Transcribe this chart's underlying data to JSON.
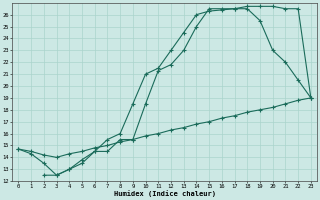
{
  "xlabel": "Humidex (Indice chaleur)",
  "bg_color": "#cce8e4",
  "grid_color": "#aad4cc",
  "line_color": "#1a6b5a",
  "xlim_min": -0.5,
  "xlim_max": 23.5,
  "ylim_min": 12,
  "ylim_max": 27,
  "yticks": [
    12,
    13,
    14,
    15,
    16,
    17,
    18,
    19,
    20,
    21,
    22,
    23,
    24,
    25,
    26
  ],
  "xticks": [
    0,
    1,
    2,
    3,
    4,
    5,
    6,
    7,
    8,
    9,
    10,
    11,
    12,
    13,
    14,
    15,
    16,
    17,
    18,
    19,
    20,
    21,
    22,
    23
  ],
  "line1_x": [
    0,
    1,
    2,
    3,
    4,
    5,
    6,
    7,
    8,
    9,
    10,
    11,
    12,
    13,
    14,
    15,
    16,
    17,
    18,
    19,
    20,
    21,
    22,
    23
  ],
  "line1_y": [
    14.7,
    14.5,
    14.2,
    14.0,
    14.3,
    14.5,
    14.8,
    15.0,
    15.3,
    15.5,
    15.8,
    16.0,
    16.3,
    16.5,
    16.8,
    17.0,
    17.3,
    17.5,
    17.8,
    18.0,
    18.2,
    18.5,
    18.8,
    19.0
  ],
  "line2_x": [
    0,
    1,
    2,
    3,
    4,
    5,
    6,
    7,
    8,
    9,
    10,
    11,
    12,
    13,
    14,
    15,
    16,
    17,
    18,
    19,
    20,
    21,
    22,
    23
  ],
  "line2_y": [
    14.7,
    14.3,
    13.5,
    12.5,
    13.0,
    13.5,
    14.5,
    15.5,
    16.0,
    18.5,
    21.0,
    21.5,
    23.0,
    24.5,
    26.0,
    26.3,
    26.4,
    26.5,
    26.5,
    25.5,
    23.0,
    22.0,
    20.5,
    19.0
  ],
  "line3_x": [
    2,
    3,
    4,
    5,
    6,
    7,
    8,
    9,
    10,
    11,
    12,
    13,
    14,
    15,
    16,
    17,
    18,
    19,
    20,
    21,
    22,
    23
  ],
  "line3_y": [
    12.5,
    12.5,
    13.0,
    13.8,
    14.5,
    14.5,
    15.5,
    15.5,
    18.5,
    21.3,
    21.8,
    23.0,
    25.0,
    26.5,
    26.5,
    26.5,
    26.7,
    26.7,
    26.7,
    26.5,
    26.5,
    19.0
  ]
}
